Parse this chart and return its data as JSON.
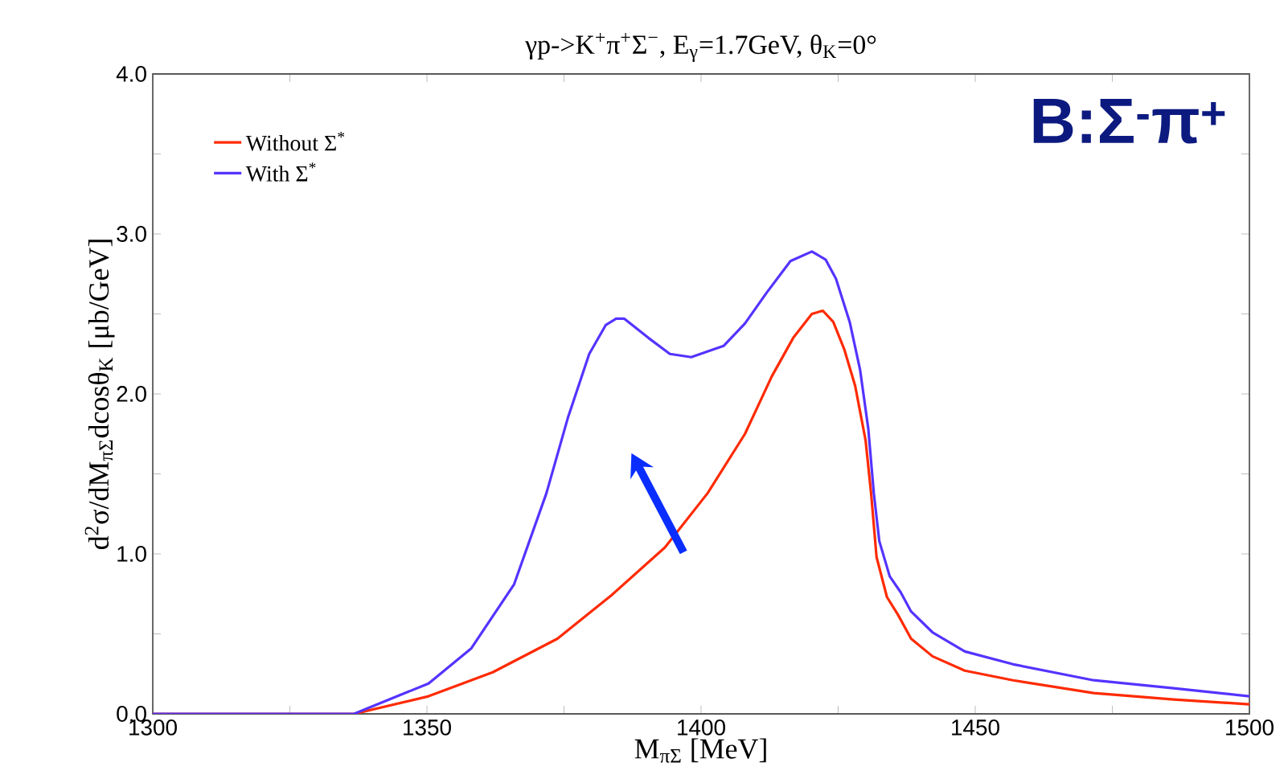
{
  "chart_data": {
    "type": "line",
    "title": "γp->K$^{+}$π$^{+}$Σ$^{−}$, E$_{γ}$=1.7GeV, θ$_{K}$=0°",
    "xlabel": "M$_{πΣ}$ [MeV]",
    "ylabel": "d$^{2}$σ/dM$_{πΣ}$dcosθ$_{K}$ [μb/GeV]",
    "annotations": [
      "B:Σ$^{-}$π$^{+}$"
    ],
    "xlim": [
      1300,
      1500
    ],
    "ylim": [
      0,
      4
    ],
    "xticks": [
      1300,
      {
        "value": 1325,
        "label": null
      },
      1350,
      {
        "value": 1375,
        "label": null
      },
      1400,
      {
        "value": 1425,
        "label": null
      },
      1450,
      {
        "value": 1475,
        "label": null
      },
      1500
    ],
    "yticks": [
      {
        "value": 0,
        "label": "0.0"
      },
      {
        "value": 0.5,
        "label": null
      },
      {
        "value": 1,
        "label": "1.0"
      },
      {
        "value": 1.5,
        "label": null
      },
      {
        "value": 2,
        "label": "2.0"
      },
      {
        "value": 2.5,
        "label": null
      },
      {
        "value": 3,
        "label": "3.0"
      },
      {
        "value": 3.5,
        "label": null
      },
      {
        "value": 4,
        "label": "4.0"
      }
    ],
    "legend": "top left",
    "marker": "none",
    "series": [
      {
        "name": "Without Σ$^{*}$",
        "color": "#ff2a00",
        "x": [
          1300,
          1336.7,
          1350.3,
          1362.0,
          1373.8,
          1383.6,
          1393.4,
          1401.2,
          1408.0,
          1412.9,
          1416.8,
          1420.2,
          1422.2,
          1424.1,
          1426.1,
          1428.1,
          1430.0,
          1431.0,
          1432.0,
          1433.9,
          1435.9,
          1438.3,
          1442.2,
          1448.1,
          1456.9,
          1471.6,
          1486.2,
          1500
        ],
        "values": [
          0,
          0,
          0.11,
          0.26,
          0.47,
          0.74,
          1.04,
          1.38,
          1.75,
          2.11,
          2.35,
          2.5,
          2.52,
          2.45,
          2.28,
          2.05,
          1.71,
          1.38,
          0.98,
          0.73,
          0.62,
          0.47,
          0.36,
          0.27,
          0.21,
          0.13,
          0.09,
          0.06
        ]
      },
      {
        "name": "With Σ$^{*}$",
        "color": "#5533ff",
        "x": [
          1300,
          1336.7,
          1350.3,
          1358.1,
          1365.9,
          1371.8,
          1375.7,
          1379.6,
          1382.6,
          1384.5,
          1386.0,
          1390.4,
          1394.3,
          1398.2,
          1404.1,
          1408.0,
          1411.9,
          1416.3,
          1420.2,
          1422.7,
          1424.6,
          1427.1,
          1429.0,
          1430.5,
          1431.5,
          1432.5,
          1434.4,
          1436.4,
          1438.3,
          1442.2,
          1448.1,
          1456.9,
          1471.6,
          1486.2,
          1500
        ],
        "values": [
          0,
          0,
          0.19,
          0.41,
          0.81,
          1.38,
          1.85,
          2.25,
          2.43,
          2.47,
          2.47,
          2.35,
          2.25,
          2.23,
          2.3,
          2.44,
          2.63,
          2.83,
          2.89,
          2.84,
          2.72,
          2.45,
          2.15,
          1.78,
          1.38,
          1.08,
          0.86,
          0.76,
          0.64,
          0.51,
          0.39,
          0.31,
          0.21,
          0.16,
          0.11
        ]
      }
    ]
  }
}
